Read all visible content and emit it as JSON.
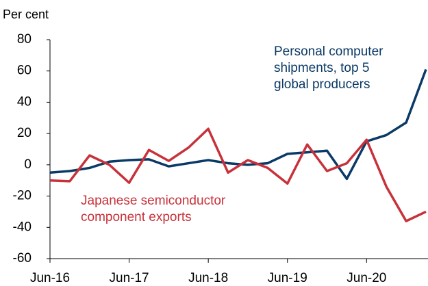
{
  "chart_data": {
    "type": "line",
    "y_label": "Per cent",
    "categories": [
      "Jun-16",
      null,
      null,
      null,
      "Jun-17",
      null,
      null,
      null,
      "Jun-18",
      null,
      null,
      null,
      "Jun-19",
      null,
      null,
      null,
      "Jun-20",
      null,
      null,
      null
    ],
    "series": [
      {
        "name": "Personal computer shipments, top 5 global producers",
        "label_lines": [
          "Personal computer",
          "shipments, top 5",
          "global producers"
        ],
        "color": "#0b3a66",
        "values": [
          -5,
          -4,
          -2,
          2,
          3,
          3.5,
          -1,
          1,
          3,
          1,
          0,
          1,
          7,
          8,
          9,
          -9,
          15,
          19,
          27,
          61
        ]
      },
      {
        "name": "Japanese semiconductor component exports",
        "label_lines": [
          "Japanese semiconductor",
          "component exports"
        ],
        "color": "#c8313a",
        "values": [
          -10,
          -10.5,
          6,
          0,
          -11.5,
          9.5,
          2.5,
          11,
          23,
          -5,
          3,
          -2,
          -12,
          13,
          -4,
          1,
          16,
          -14,
          -36,
          -30
        ]
      }
    ],
    "ylim": [
      -60,
      80
    ],
    "yticks": [
      -60,
      -40,
      -20,
      0,
      20,
      40,
      60,
      80
    ]
  }
}
